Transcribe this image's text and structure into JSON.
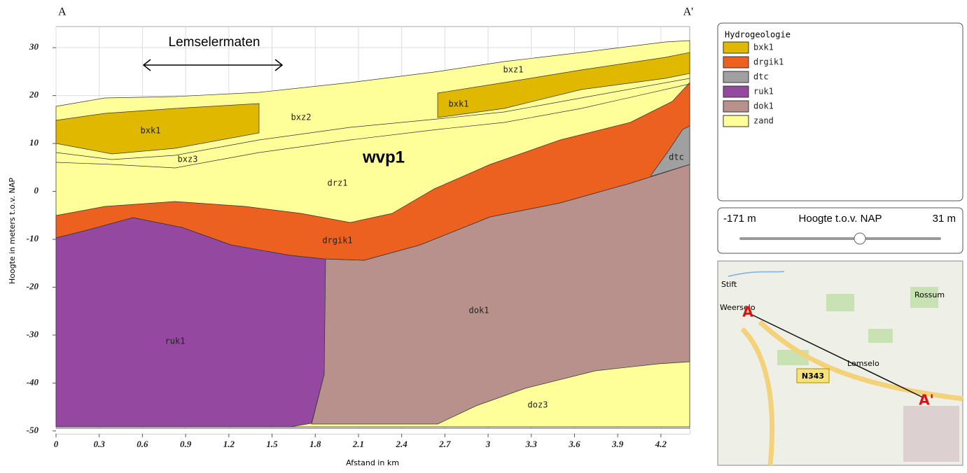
{
  "chart_data": {
    "type": "cross-section",
    "start_label": "A",
    "end_label": "A'",
    "annotation": "Lemselermaten",
    "unit_label": "wvp1",
    "x_label": "Afstand in km",
    "y_label": "Hoogte in meters t.o.v. NAP",
    "xlim": [
      0,
      4.4
    ],
    "ylim": [
      -50.6,
      34.4
    ],
    "xticks": [
      0,
      0.3,
      0.6,
      0.9,
      1.2,
      1.5,
      1.8,
      2.1,
      2.4,
      2.7,
      3,
      3.3,
      3.6,
      3.9,
      4.2
    ],
    "yticks": [
      -50,
      -40,
      -30,
      -20,
      -10,
      0,
      10,
      20,
      30
    ],
    "grid": true,
    "layer_labels": [
      "bxz1",
      "bxk1",
      "bxz2",
      "bxk1",
      "bxz3",
      "drz1",
      "dtc",
      "drgik1",
      "dok1",
      "ruk1",
      "doz3"
    ],
    "legend": {
      "title": "Hydrogeologie",
      "series": [
        {
          "name": "bxk1",
          "color": "#e0b800"
        },
        {
          "name": "drgik1",
          "color": "#ec6020"
        },
        {
          "name": "dtc",
          "color": "#a0a0a0"
        },
        {
          "name": "ruk1",
          "color": "#9448a0"
        },
        {
          "name": "dok1",
          "color": "#b8918c"
        },
        {
          "name": "zand",
          "color": "#ffff99"
        }
      ]
    }
  },
  "slider": {
    "min_label": "-171 m",
    "title": "Hoogte t.o.v. NAP",
    "max_label": "31 m"
  },
  "map": {
    "places": [
      "Stift",
      "Weerselo",
      "Rossum",
      "Lemselo",
      "N343"
    ],
    "start": "A",
    "end": "A'"
  }
}
